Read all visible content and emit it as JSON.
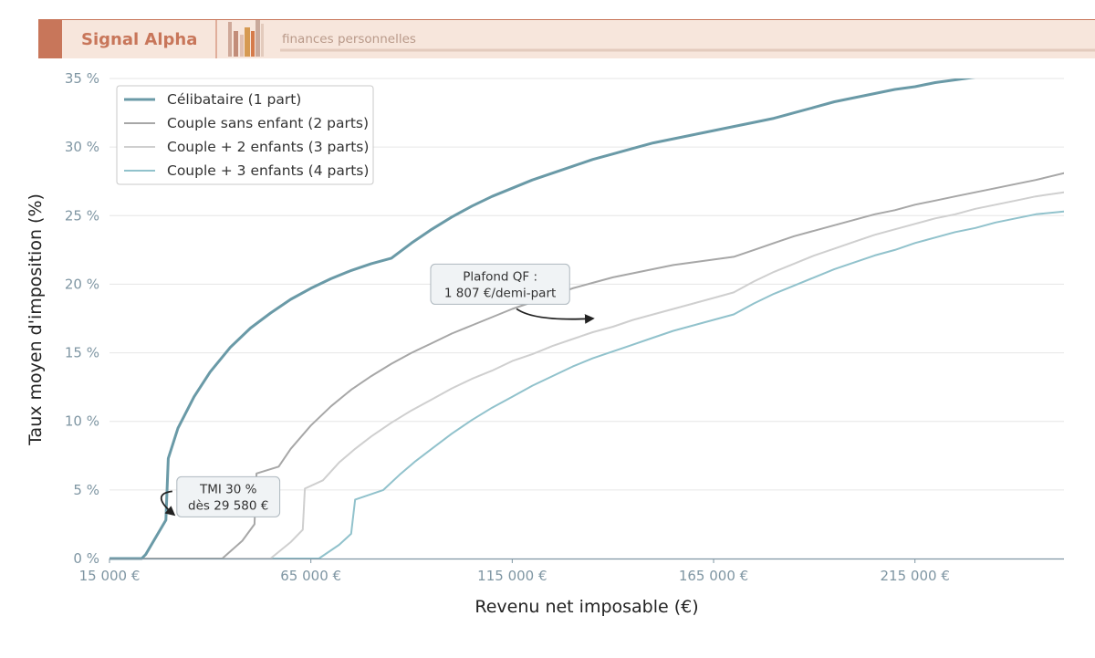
{
  "header": {
    "brand": "Signal Alpha",
    "tagline": "finances personnelles",
    "bg_color": "#f7e6dc",
    "accent_color": "#c8765a",
    "line_color": "#e3cbbd"
  },
  "chart_data": {
    "type": "line",
    "title": "",
    "xlabel": "Revenu net imposable (€)",
    "ylabel": "Taux moyen d'imposition (%)",
    "xlim": [
      15000,
      252000
    ],
    "ylim": [
      0,
      35
    ],
    "x_ticks": [
      15000,
      65000,
      115000,
      165000,
      215000
    ],
    "x_tick_labels": [
      "15 000 €",
      "65 000 €",
      "115 000 €",
      "165 000 €",
      "215 000 €"
    ],
    "y_ticks": [
      0,
      5,
      10,
      15,
      20,
      25,
      30,
      35
    ],
    "y_tick_labels": [
      "0 %",
      "5 %",
      "10 %",
      "15 %",
      "20 %",
      "25 %",
      "30 %",
      "35 %"
    ],
    "grid": "horizontal",
    "legend_position": "top-left",
    "series": [
      {
        "name": "Célibataire (1 part)",
        "color": "#6a9aa7",
        "width": 3,
        "points": [
          [
            15000,
            0
          ],
          [
            23000,
            0
          ],
          [
            24000,
            0.3
          ],
          [
            29000,
            2.8
          ],
          [
            29600,
            7.3
          ],
          [
            32000,
            9.5
          ],
          [
            36000,
            11.8
          ],
          [
            40000,
            13.6
          ],
          [
            45000,
            15.4
          ],
          [
            50000,
            16.8
          ],
          [
            55000,
            17.9
          ],
          [
            60000,
            18.9
          ],
          [
            65000,
            19.7
          ],
          [
            70000,
            20.4
          ],
          [
            75000,
            21.0
          ],
          [
            80000,
            21.5
          ],
          [
            85000,
            21.9
          ],
          [
            90000,
            23.0
          ],
          [
            95000,
            24.0
          ],
          [
            100000,
            24.9
          ],
          [
            105000,
            25.7
          ],
          [
            110000,
            26.4
          ],
          [
            115000,
            27.0
          ],
          [
            120000,
            27.6
          ],
          [
            125000,
            28.1
          ],
          [
            130000,
            28.6
          ],
          [
            135000,
            29.1
          ],
          [
            140000,
            29.5
          ],
          [
            145000,
            29.9
          ],
          [
            150000,
            30.3
          ],
          [
            155000,
            30.6
          ],
          [
            160000,
            30.9
          ],
          [
            165000,
            31.2
          ],
          [
            170000,
            31.5
          ],
          [
            175000,
            31.8
          ],
          [
            180000,
            32.1
          ],
          [
            185000,
            32.5
          ],
          [
            190000,
            32.9
          ],
          [
            195000,
            33.3
          ],
          [
            200000,
            33.6
          ],
          [
            205000,
            33.9
          ],
          [
            210000,
            34.2
          ],
          [
            215000,
            34.4
          ],
          [
            220000,
            34.7
          ],
          [
            225000,
            34.9
          ],
          [
            230000,
            35.1
          ],
          [
            235000,
            35.3
          ],
          [
            240000,
            35.5
          ],
          [
            245000,
            35.6
          ],
          [
            252000,
            35.8
          ]
        ]
      },
      {
        "name": "Couple sans enfant (2 parts)",
        "color": "#a7a7a7",
        "width": 2,
        "points": [
          [
            15000,
            0
          ],
          [
            43000,
            0
          ],
          [
            48000,
            1.3
          ],
          [
            51000,
            2.5
          ],
          [
            51500,
            6.2
          ],
          [
            57000,
            6.7
          ],
          [
            60000,
            8.0
          ],
          [
            65000,
            9.7
          ],
          [
            70000,
            11.1
          ],
          [
            75000,
            12.3
          ],
          [
            80000,
            13.3
          ],
          [
            85000,
            14.2
          ],
          [
            90000,
            15.0
          ],
          [
            95000,
            15.7
          ],
          [
            100000,
            16.4
          ],
          [
            105000,
            17.0
          ],
          [
            110000,
            17.6
          ],
          [
            115000,
            18.2
          ],
          [
            120000,
            18.7
          ],
          [
            125000,
            19.2
          ],
          [
            130000,
            19.7
          ],
          [
            135000,
            20.1
          ],
          [
            140000,
            20.5
          ],
          [
            145000,
            20.8
          ],
          [
            150000,
            21.1
          ],
          [
            155000,
            21.4
          ],
          [
            160000,
            21.6
          ],
          [
            165000,
            21.8
          ],
          [
            170000,
            22.0
          ],
          [
            175000,
            22.5
          ],
          [
            180000,
            23.0
          ],
          [
            185000,
            23.5
          ],
          [
            190000,
            23.9
          ],
          [
            195000,
            24.3
          ],
          [
            200000,
            24.7
          ],
          [
            205000,
            25.1
          ],
          [
            210000,
            25.4
          ],
          [
            215000,
            25.8
          ],
          [
            220000,
            26.1
          ],
          [
            225000,
            26.4
          ],
          [
            230000,
            26.7
          ],
          [
            235000,
            27.0
          ],
          [
            240000,
            27.3
          ],
          [
            245000,
            27.6
          ],
          [
            252000,
            28.1
          ]
        ]
      },
      {
        "name": "Couple + 2 enfants (3 parts)",
        "color": "#cfcfcf",
        "width": 2,
        "points": [
          [
            15000,
            0
          ],
          [
            55000,
            0
          ],
          [
            60000,
            1.2
          ],
          [
            63000,
            2.1
          ],
          [
            63500,
            5.1
          ],
          [
            68000,
            5.7
          ],
          [
            72000,
            7.0
          ],
          [
            76000,
            8.0
          ],
          [
            80000,
            8.9
          ],
          [
            85000,
            9.9
          ],
          [
            90000,
            10.8
          ],
          [
            95000,
            11.6
          ],
          [
            100000,
            12.4
          ],
          [
            105000,
            13.1
          ],
          [
            110000,
            13.7
          ],
          [
            115000,
            14.4
          ],
          [
            120000,
            14.9
          ],
          [
            125000,
            15.5
          ],
          [
            130000,
            16.0
          ],
          [
            135000,
            16.5
          ],
          [
            140000,
            16.9
          ],
          [
            145000,
            17.4
          ],
          [
            150000,
            17.8
          ],
          [
            155000,
            18.2
          ],
          [
            160000,
            18.6
          ],
          [
            165000,
            19.0
          ],
          [
            170000,
            19.4
          ],
          [
            175000,
            20.2
          ],
          [
            180000,
            20.9
          ],
          [
            185000,
            21.5
          ],
          [
            190000,
            22.1
          ],
          [
            195000,
            22.6
          ],
          [
            200000,
            23.1
          ],
          [
            205000,
            23.6
          ],
          [
            210000,
            24.0
          ],
          [
            215000,
            24.4
          ],
          [
            220000,
            24.8
          ],
          [
            225000,
            25.1
          ],
          [
            230000,
            25.5
          ],
          [
            235000,
            25.8
          ],
          [
            240000,
            26.1
          ],
          [
            245000,
            26.4
          ],
          [
            252000,
            26.7
          ]
        ]
      },
      {
        "name": "Couple + 3 enfants (4 parts)",
        "color": "#91c2cc",
        "width": 2,
        "points": [
          [
            15000,
            0
          ],
          [
            67000,
            0
          ],
          [
            72000,
            1.0
          ],
          [
            75000,
            1.8
          ],
          [
            76000,
            4.3
          ],
          [
            78000,
            4.5
          ],
          [
            83000,
            5.0
          ],
          [
            87000,
            6.1
          ],
          [
            91000,
            7.1
          ],
          [
            95000,
            8.0
          ],
          [
            100000,
            9.1
          ],
          [
            105000,
            10.1
          ],
          [
            110000,
            11.0
          ],
          [
            115000,
            11.8
          ],
          [
            120000,
            12.6
          ],
          [
            125000,
            13.3
          ],
          [
            130000,
            14.0
          ],
          [
            135000,
            14.6
          ],
          [
            140000,
            15.1
          ],
          [
            145000,
            15.6
          ],
          [
            150000,
            16.1
          ],
          [
            155000,
            16.6
          ],
          [
            160000,
            17.0
          ],
          [
            165000,
            17.4
          ],
          [
            170000,
            17.8
          ],
          [
            175000,
            18.6
          ],
          [
            180000,
            19.3
          ],
          [
            185000,
            19.9
          ],
          [
            190000,
            20.5
          ],
          [
            195000,
            21.1
          ],
          [
            200000,
            21.6
          ],
          [
            205000,
            22.1
          ],
          [
            210000,
            22.5
          ],
          [
            215000,
            23.0
          ],
          [
            220000,
            23.4
          ],
          [
            225000,
            23.8
          ],
          [
            230000,
            24.1
          ],
          [
            235000,
            24.5
          ],
          [
            240000,
            24.8
          ],
          [
            245000,
            25.1
          ],
          [
            252000,
            25.3
          ]
        ]
      }
    ],
    "annotations": [
      {
        "id": "tmi",
        "lines": [
          "TMI 30 %",
          "dès 29 580 €"
        ],
        "x": 44500,
        "y": 4.5,
        "arrow_to": [
          31000,
          3.2
        ]
      },
      {
        "id": "qf",
        "lines": [
          "Plafond QF :",
          "1 807 €/demi-part"
        ],
        "x": 112000,
        "y": 20,
        "arrow_to": [
          135000,
          17.5
        ]
      }
    ]
  }
}
